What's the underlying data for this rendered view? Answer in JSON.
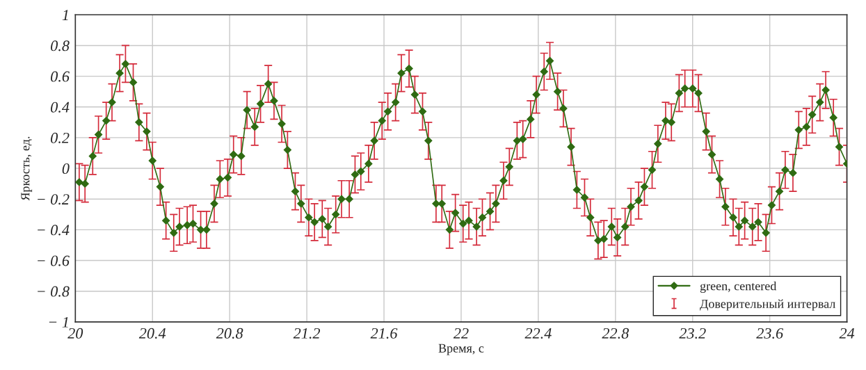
{
  "chart_data": {
    "type": "line",
    "xlabel": "Время, с",
    "ylabel": "Яркость, ед.",
    "annotations": [
      "Доверительный интервал"
    ],
    "x": [
      20.02,
      20.05,
      20.09,
      20.12,
      20.16,
      20.19,
      20.23,
      20.26,
      20.3,
      20.33,
      20.37,
      20.4,
      20.44,
      20.47,
      20.51,
      20.54,
      20.58,
      20.61,
      20.65,
      20.68,
      20.72,
      20.75,
      20.79,
      20.82,
      20.86,
      20.89,
      20.93,
      20.96,
      21.0,
      21.03,
      21.07,
      21.1,
      21.14,
      21.17,
      21.21,
      21.24,
      21.28,
      21.31,
      21.35,
      21.38,
      21.42,
      21.45,
      21.48,
      21.52,
      21.55,
      21.59,
      21.62,
      21.66,
      21.69,
      21.73,
      21.76,
      21.8,
      21.83,
      21.87,
      21.9,
      21.94,
      21.97,
      22.01,
      22.04,
      22.08,
      22.11,
      22.15,
      22.18,
      22.22,
      22.25,
      22.29,
      22.32,
      22.36,
      22.39,
      22.43,
      22.46,
      22.5,
      22.53,
      22.57,
      22.6,
      22.64,
      22.67,
      22.71,
      22.74,
      22.78,
      22.81,
      22.85,
      22.88,
      22.92,
      22.95,
      22.99,
      23.02,
      23.06,
      23.09,
      23.13,
      23.16,
      23.2,
      23.23,
      23.27,
      23.3,
      23.34,
      23.37,
      23.41,
      23.44,
      23.47,
      23.51,
      23.54,
      23.58,
      23.61,
      23.65,
      23.68,
      23.72,
      23.75,
      23.79,
      23.82,
      23.86,
      23.89,
      23.93,
      23.96,
      24.0
    ],
    "series": [
      {
        "name": "green, centered",
        "color": "#2f6b12",
        "values": [
          -0.09,
          -0.1,
          0.08,
          0.22,
          0.31,
          0.43,
          0.62,
          0.68,
          0.56,
          0.3,
          0.24,
          0.05,
          -0.12,
          -0.34,
          -0.42,
          -0.38,
          -0.37,
          -0.36,
          -0.4,
          -0.4,
          -0.23,
          -0.07,
          -0.06,
          0.09,
          0.08,
          0.38,
          0.27,
          0.42,
          0.55,
          0.44,
          0.29,
          0.12,
          -0.15,
          -0.23,
          -0.32,
          -0.35,
          -0.33,
          -0.38,
          -0.3,
          -0.2,
          -0.2,
          -0.04,
          -0.02,
          0.03,
          0.18,
          0.31,
          0.37,
          0.43,
          0.62,
          0.65,
          0.48,
          0.37,
          0.18,
          -0.23,
          -0.23,
          -0.4,
          -0.29,
          -0.36,
          -0.34,
          -0.38,
          -0.32,
          -0.28,
          -0.23,
          -0.08,
          0.01,
          0.18,
          0.19,
          0.32,
          0.48,
          0.63,
          0.7,
          0.5,
          0.39,
          0.14,
          -0.14,
          -0.19,
          -0.32,
          -0.47,
          -0.46,
          -0.38,
          -0.45,
          -0.38,
          -0.25,
          -0.21,
          -0.12,
          -0.01,
          0.16,
          0.31,
          0.3,
          0.49,
          0.52,
          0.52,
          0.49,
          0.24,
          0.09,
          -0.07,
          -0.25,
          -0.32,
          -0.38,
          -0.34,
          -0.38,
          -0.35,
          -0.42,
          -0.24,
          -0.15,
          -0.01,
          -0.03,
          0.25,
          0.27,
          0.35,
          0.43,
          0.51,
          0.33,
          0.14,
          0.03
        ],
        "errors": [
          0.12,
          0.12,
          0.12,
          0.12,
          0.12,
          0.12,
          0.12,
          0.12,
          0.12,
          0.12,
          0.12,
          0.12,
          0.12,
          0.12,
          0.12,
          0.12,
          0.12,
          0.12,
          0.12,
          0.12,
          0.12,
          0.12,
          0.12,
          0.12,
          0.12,
          0.12,
          0.12,
          0.12,
          0.12,
          0.12,
          0.12,
          0.12,
          0.12,
          0.12,
          0.12,
          0.12,
          0.12,
          0.12,
          0.12,
          0.12,
          0.12,
          0.12,
          0.12,
          0.12,
          0.12,
          0.12,
          0.12,
          0.12,
          0.12,
          0.12,
          0.12,
          0.12,
          0.12,
          0.12,
          0.12,
          0.12,
          0.12,
          0.12,
          0.12,
          0.12,
          0.12,
          0.12,
          0.12,
          0.12,
          0.12,
          0.12,
          0.12,
          0.12,
          0.12,
          0.12,
          0.12,
          0.12,
          0.12,
          0.12,
          0.12,
          0.12,
          0.12,
          0.12,
          0.12,
          0.12,
          0.12,
          0.12,
          0.12,
          0.12,
          0.12,
          0.12,
          0.12,
          0.12,
          0.12,
          0.12,
          0.12,
          0.12,
          0.12,
          0.12,
          0.12,
          0.12,
          0.12,
          0.12,
          0.12,
          0.12,
          0.12,
          0.12,
          0.12,
          0.12,
          0.12,
          0.12,
          0.12,
          0.12,
          0.12,
          0.12,
          0.12,
          0.12,
          0.12,
          0.12,
          0.12
        ]
      }
    ],
    "xlim": [
      20,
      24
    ],
    "xticks": [
      20,
      20.4,
      20.8,
      21.2,
      21.6,
      22,
      22.4,
      22.8,
      23.2,
      23.6,
      24
    ],
    "ylim": [
      -1,
      1
    ],
    "yticks": [
      {
        "value": -1,
        "label": "− 1"
      },
      {
        "value": -0.8,
        "label": "− 0.8"
      },
      {
        "value": -0.6,
        "label": "− 0.6"
      },
      {
        "value": -0.4,
        "label": "− 0.4"
      },
      {
        "value": -0.2,
        "label": "− 0.2"
      },
      0,
      0.2,
      0.4,
      0.6,
      0.8,
      1
    ],
    "grid": true,
    "legend": "bottom right",
    "marker": "diamond",
    "line_style": "solid"
  }
}
